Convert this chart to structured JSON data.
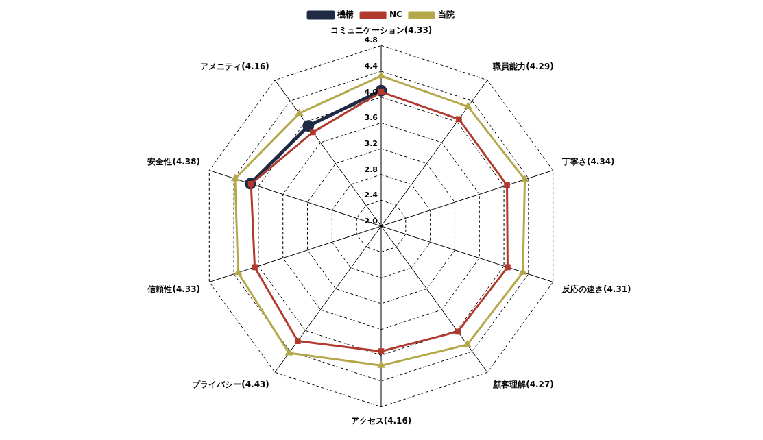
{
  "chart_data": {
    "type": "radar",
    "categories": [
      "コミュニケーション(4.33)",
      "職員能力(4.29)",
      "丁寧さ(4.34)",
      "反応の速さ(4.31)",
      "顧客理解(4.27)",
      "アクセス(4.16)",
      "プライバシー(4.43)",
      "信頼性(4.33)",
      "安全性(4.38)",
      "アメニティ(4.16)"
    ],
    "series": [
      {
        "name": "機構",
        "color": "#1f2a44",
        "marker": "circle",
        "values": [
          4.1,
          null,
          null,
          null,
          null,
          null,
          null,
          null,
          4.13,
          3.92
        ]
      },
      {
        "name": "NC",
        "color": "#b03a2e",
        "marker": "square",
        "values": [
          4.08,
          4.05,
          4.05,
          4.06,
          4.02,
          3.94,
          4.2,
          4.06,
          4.12,
          3.8
        ]
      },
      {
        "name": "当院",
        "color": "#b5a84a",
        "marker": "triangle",
        "values": [
          4.33,
          4.29,
          4.34,
          4.31,
          4.27,
          4.16,
          4.43,
          4.33,
          4.38,
          4.16
        ]
      }
    ],
    "ylim": [
      2,
      4.8
    ],
    "yticks": [
      {
        "value": 2,
        "label": "2.0"
      },
      {
        "value": 2.4,
        "label": "2.4"
      },
      {
        "value": 2.8,
        "label": "2.8"
      },
      {
        "value": 3.2,
        "label": "3.2"
      },
      {
        "value": 3.6,
        "label": "3.6"
      },
      {
        "value": 4,
        "label": "4.0"
      },
      {
        "value": 4.4,
        "label": "4.4"
      },
      {
        "value": 4.8,
        "label": "4.8"
      }
    ],
    "grid": true,
    "legend": "top",
    "line_style": "dashed"
  }
}
